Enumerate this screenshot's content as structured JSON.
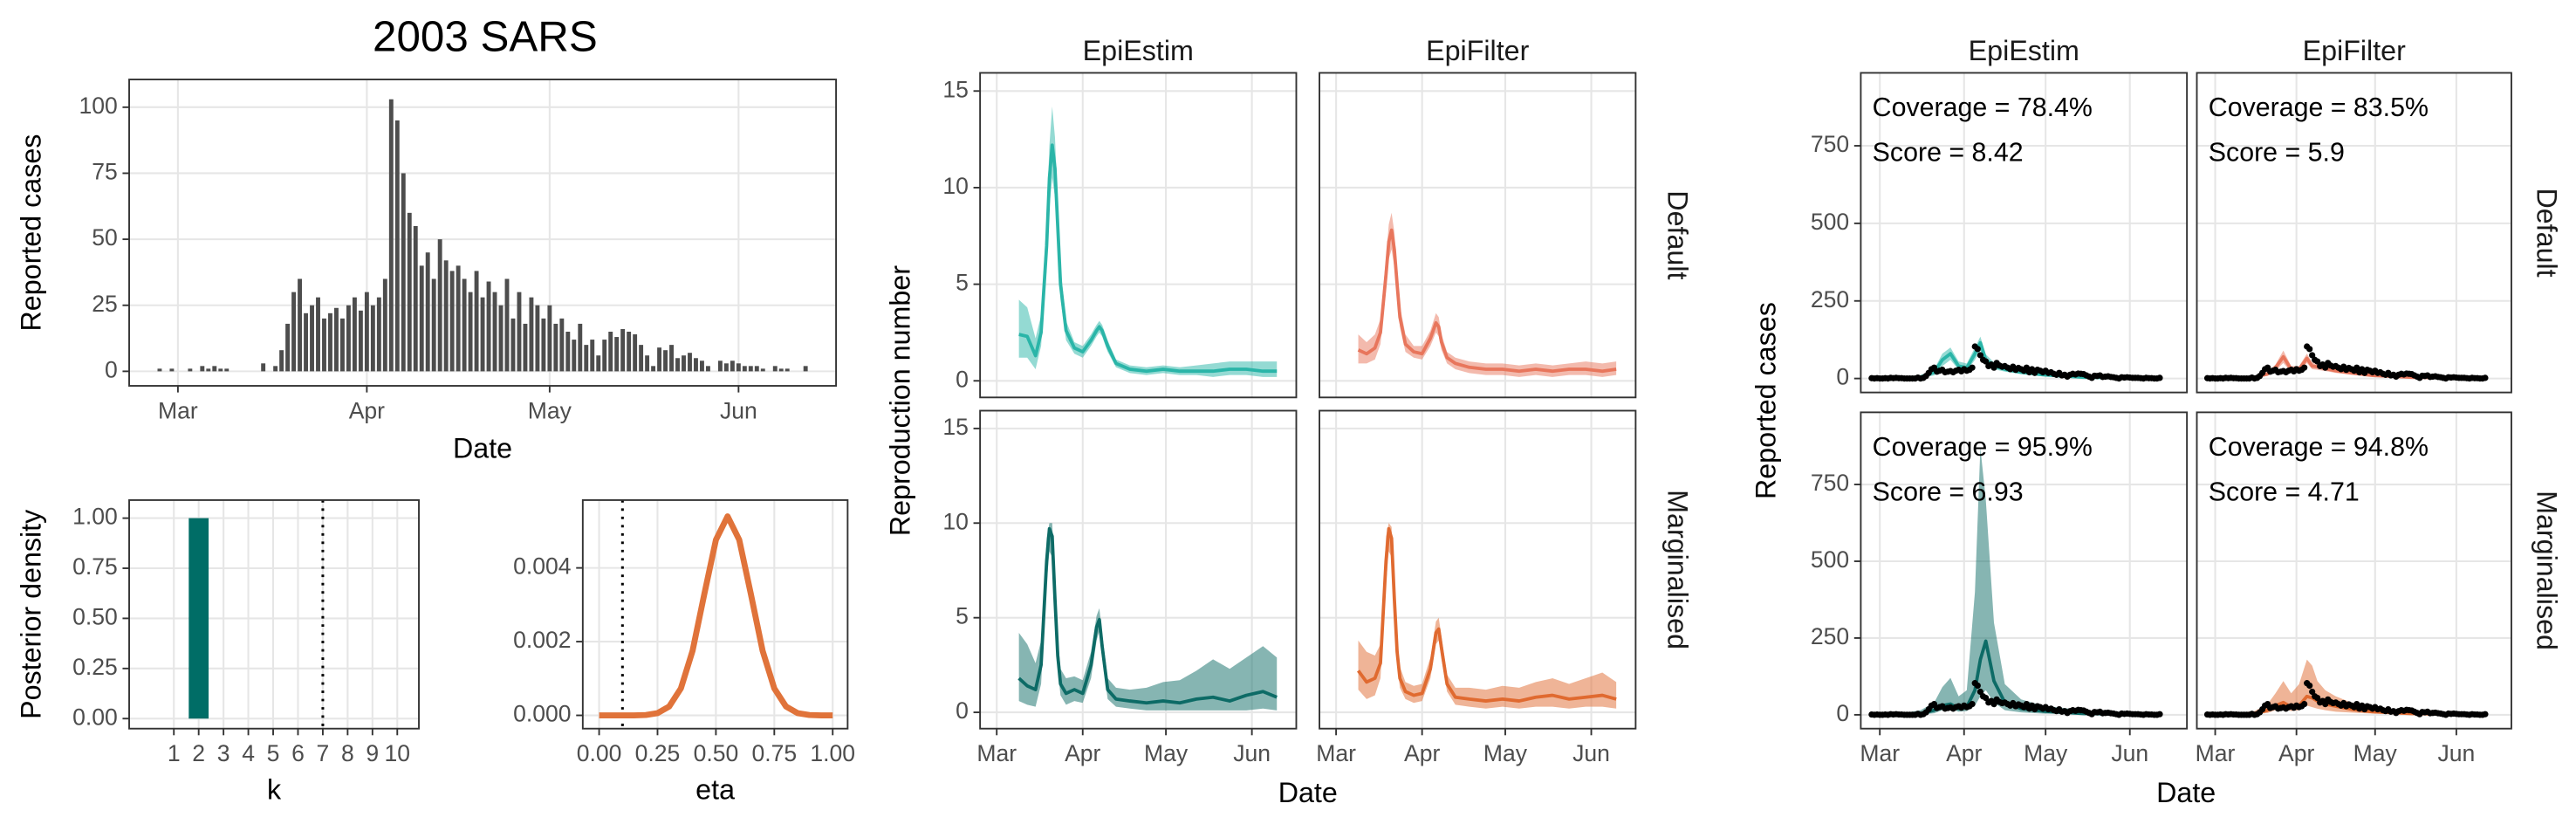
{
  "chart_data": [
    {
      "type": "bar",
      "title": "2003 SARS",
      "xlabel": "Date",
      "ylabel": "Reported cases",
      "x": [
        -3,
        -2,
        -1,
        0,
        1,
        2,
        3,
        4,
        5,
        6,
        7,
        8,
        9,
        10,
        11,
        12,
        13,
        14,
        15,
        16,
        17,
        18,
        19,
        20,
        21,
        22,
        23,
        24,
        25,
        26,
        27,
        28,
        29,
        30,
        31,
        32,
        33,
        34,
        35,
        36,
        37,
        38,
        39,
        40,
        41,
        42,
        43,
        44,
        45,
        46,
        47,
        48,
        49,
        50,
        51,
        52,
        53,
        54,
        55,
        56,
        57,
        58,
        59,
        60,
        61,
        62,
        63,
        64,
        65,
        66,
        67,
        68,
        69,
        70,
        71,
        72,
        73,
        74,
        75,
        76,
        77,
        78,
        79,
        80,
        81,
        82,
        83,
        84,
        85,
        86,
        87,
        88,
        89,
        90,
        91,
        92,
        93,
        94,
        95,
        96,
        97,
        98,
        99,
        100,
        101,
        102,
        103
      ],
      "values": [
        1,
        0,
        1,
        0,
        0,
        1,
        0,
        2,
        1,
        2,
        1,
        1,
        0,
        0,
        0,
        0,
        0,
        3,
        0,
        2,
        8,
        18,
        30,
        35,
        22,
        25,
        28,
        20,
        22,
        24,
        20,
        25,
        28,
        23,
        30,
        25,
        28,
        35,
        103,
        95,
        75,
        60,
        55,
        40,
        45,
        35,
        50,
        42,
        38,
        40,
        35,
        30,
        38,
        28,
        34,
        30,
        25,
        35,
        20,
        30,
        18,
        28,
        25,
        20,
        25,
        18,
        20,
        15,
        12,
        18,
        10,
        12,
        6,
        12,
        15,
        13,
        16,
        15,
        14,
        10,
        6,
        2,
        9,
        8,
        10,
        5,
        6,
        7,
        5,
        4,
        2,
        0,
        4,
        3,
        4,
        3,
        2,
        2,
        2,
        1,
        0,
        2,
        1,
        1,
        0,
        0,
        2
      ],
      "color": "#4d4d4d",
      "grid": true,
      "xlim": [
        -8,
        108
      ],
      "xticks": [
        {
          "value": 0,
          "label": "Mar"
        },
        {
          "value": 31,
          "label": "Apr"
        },
        {
          "value": 61,
          "label": "May"
        },
        {
          "value": 92,
          "label": "Jun"
        }
      ],
      "ylim": [
        -5.5,
        110.5
      ],
      "yticks": [
        0,
        25,
        50,
        75,
        100
      ]
    },
    {
      "type": "bar",
      "xlabel": "k",
      "ylabel": "Posterior density",
      "categories": [
        "1",
        "2",
        "3",
        "4",
        "5",
        "6",
        "7",
        "8",
        "9",
        "10"
      ],
      "values": [
        0,
        1,
        0,
        0,
        0,
        0,
        0,
        0,
        0,
        0
      ],
      "color": "#006d66",
      "grid": true,
      "vline": 7,
      "ylim": [
        -0.05,
        1.09
      ],
      "yticks": [
        {
          "value": 0,
          "label": "0.00"
        },
        {
          "value": 0.25,
          "label": "0.25"
        },
        {
          "value": 0.5,
          "label": "0.50"
        },
        {
          "value": 0.75,
          "label": "0.75"
        },
        {
          "value": 1,
          "label": "1.00"
        }
      ]
    },
    {
      "type": "line",
      "xlabel": "eta",
      "x": [
        0,
        0.05,
        0.1,
        0.15,
        0.2,
        0.25,
        0.3,
        0.35,
        0.4,
        0.45,
        0.5,
        0.55,
        0.6,
        0.65,
        0.7,
        0.75,
        0.8,
        0.85,
        0.9,
        0.95,
        1
      ],
      "values": [
        0,
        0,
        0,
        0,
        1e-05,
        6e-05,
        0.00024,
        0.00073,
        0.00175,
        0.00328,
        0.00476,
        0.0054,
        0.00476,
        0.00328,
        0.00175,
        0.00073,
        0.00024,
        6e-05,
        1e-05,
        0,
        0
      ],
      "color": "#e0733a",
      "grid": true,
      "vline": 0.1,
      "xlim": [
        -0.07,
        1.064
      ],
      "xticks": [
        {
          "value": 0,
          "label": "0.00"
        },
        {
          "value": 0.25,
          "label": "0.25"
        },
        {
          "value": 0.5,
          "label": "0.50"
        },
        {
          "value": 0.75,
          "label": "0.75"
        },
        {
          "value": 1,
          "label": "1.00"
        }
      ],
      "ylim": [
        -0.00036,
        0.00584
      ],
      "yticks": [
        {
          "value": 0,
          "label": "0.000"
        },
        {
          "value": 0.002,
          "label": "0.002"
        },
        {
          "value": 0.004,
          "label": "0.004"
        }
      ]
    },
    {
      "type": "facet_ribbon",
      "xlabel": "Date",
      "ylabel": "Reproduction number",
      "columns": [
        "EpiEstim",
        "EpiFilter"
      ],
      "rows": [
        "Default",
        "Marginalised"
      ],
      "grid": true,
      "x": [
        8,
        11,
        14,
        16,
        18,
        19,
        20,
        21,
        22,
        23,
        25,
        28,
        31,
        34,
        36,
        37,
        38,
        40,
        43,
        48,
        54,
        60,
        66,
        72,
        78,
        84,
        90,
        96,
        101
      ],
      "xlim": [
        -6,
        108
      ],
      "xticks": [
        {
          "value": 0,
          "label": "Mar"
        },
        {
          "value": 31,
          "label": "Apr"
        },
        {
          "value": 61,
          "label": "May"
        },
        {
          "value": 92,
          "label": "Jun"
        }
      ],
      "ylim": [
        -0.86,
        15.94
      ],
      "yticks": [
        0,
        5,
        10,
        15
      ],
      "panels": [
        {
          "color": "#2ab5a8",
          "values": [
            2.4,
            2.3,
            1.3,
            2.5,
            7,
            10.5,
            12.2,
            11,
            8,
            5,
            2.6,
            1.7,
            1.5,
            2.1,
            2.6,
            2.8,
            2.6,
            1.8,
            0.9,
            0.6,
            0.5,
            0.6,
            0.5,
            0.5,
            0.5,
            0.6,
            0.6,
            0.5,
            0.5
          ],
          "lower": [
            1.2,
            1.2,
            0.6,
            1.8,
            5.8,
            9,
            10.5,
            9.5,
            6.8,
            4.2,
            2.1,
            1.4,
            1.2,
            1.8,
            2.3,
            2.5,
            2.3,
            1.5,
            0.7,
            0.4,
            0.3,
            0.4,
            0.3,
            0.3,
            0.2,
            0.3,
            0.3,
            0.2,
            0.2
          ],
          "upper": [
            4.2,
            3.8,
            2.2,
            3.4,
            8.4,
            12.2,
            14.2,
            12.6,
            9.4,
            5.9,
            3.1,
            2,
            1.8,
            2.4,
            2.9,
            3.1,
            2.9,
            2.1,
            1.1,
            0.8,
            0.7,
            0.8,
            0.7,
            0.8,
            0.9,
            1,
            1,
            1,
            1
          ]
        },
        {
          "color": "#e8765c",
          "values": [
            1.6,
            1.4,
            1.7,
            2.5,
            5.5,
            7.2,
            7.8,
            6.8,
            5,
            3.3,
            1.9,
            1.5,
            1.4,
            2.2,
            3,
            2.8,
            2,
            1.2,
            0.9,
            0.7,
            0.6,
            0.6,
            0.5,
            0.6,
            0.5,
            0.6,
            0.6,
            0.5,
            0.6
          ],
          "lower": [
            0.9,
            0.9,
            1.1,
            1.9,
            4.7,
            6.3,
            6.8,
            5.9,
            4.3,
            2.8,
            1.5,
            1.2,
            1.1,
            1.8,
            2.5,
            2.3,
            1.6,
            0.9,
            0.6,
            0.4,
            0.3,
            0.3,
            0.2,
            0.3,
            0.2,
            0.3,
            0.3,
            0.2,
            0.3
          ],
          "upper": [
            2.4,
            2,
            2.4,
            3.2,
            6.4,
            8.1,
            8.7,
            7.7,
            5.8,
            3.9,
            2.4,
            1.8,
            1.8,
            2.6,
            3.5,
            3.3,
            2.4,
            1.5,
            1.2,
            1,
            0.9,
            0.9,
            0.8,
            0.9,
            0.8,
            0.9,
            1,
            0.9,
            1
          ]
        },
        {
          "color": "#0d6b66",
          "values": [
            1.8,
            1.4,
            1.2,
            2.5,
            8,
            9.7,
            9.3,
            6,
            3,
            1.5,
            1,
            1.2,
            1,
            2.5,
            4.5,
            4.9,
            3.5,
            1.2,
            0.7,
            0.6,
            0.5,
            0.6,
            0.5,
            0.7,
            0.8,
            0.6,
            0.9,
            1.1,
            0.8
          ],
          "lower": [
            0.6,
            0.4,
            0.3,
            1.5,
            6.8,
            8.5,
            8.2,
            5,
            2.3,
            0.9,
            0.4,
            0.6,
            0.5,
            1.8,
            3.8,
            4.3,
            2.9,
            0.7,
            0.3,
            0.2,
            0.1,
            0.1,
            0.1,
            0.1,
            0.1,
            0.1,
            0.1,
            0.2,
            0.1
          ],
          "upper": [
            4.2,
            3.6,
            2.6,
            3.8,
            9.2,
            10,
            10,
            7,
            4,
            2.3,
            1.8,
            1.9,
            1.7,
            3.2,
            5.1,
            5.5,
            4.2,
            1.8,
            1.3,
            1.2,
            1.3,
            1.6,
            1.7,
            2.2,
            2.8,
            2.3,
            2.9,
            3.5,
            2.9
          ]
        },
        {
          "color": "#e06a30",
          "values": [
            2.2,
            1.6,
            1.8,
            2.6,
            8,
            9.7,
            9.2,
            6,
            3.2,
            1.8,
            1.1,
            0.9,
            1,
            2.3,
            4.2,
            4.4,
            3.4,
            1.5,
            0.8,
            0.7,
            0.6,
            0.7,
            0.6,
            0.8,
            0.9,
            0.7,
            0.8,
            0.9,
            0.7
          ],
          "lower": [
            1.2,
            0.7,
            0.9,
            1.8,
            6.8,
            8.5,
            8.2,
            5.2,
            2.6,
            1.3,
            0.7,
            0.5,
            0.6,
            1.8,
            3.6,
            3.8,
            2.8,
            1.1,
            0.4,
            0.3,
            0.2,
            0.3,
            0.2,
            0.3,
            0.3,
            0.2,
            0.3,
            0.3,
            0.2
          ],
          "upper": [
            3.8,
            3.2,
            3,
            3.6,
            9.3,
            10,
            9.8,
            6.8,
            3.8,
            2.4,
            1.6,
            1.4,
            1.5,
            2.9,
            4.8,
            5,
            4,
            2,
            1.3,
            1.3,
            1.2,
            1.4,
            1.3,
            1.6,
            1.8,
            1.5,
            1.8,
            2.1,
            1.6
          ]
        }
      ]
    },
    {
      "type": "facet_ribbon",
      "xlabel": "Date",
      "ylabel": "Reported cases",
      "columns": [
        "EpiEstim",
        "EpiFilter"
      ],
      "rows": [
        "Default",
        "Marginalised"
      ],
      "grid": true,
      "observed_color": "#000000",
      "x": [
        0,
        5,
        10,
        15,
        20,
        23,
        26,
        29,
        32,
        35,
        37,
        39,
        42,
        46,
        52,
        60,
        75,
        100
      ],
      "xlim": [
        -7,
        113
      ],
      "xticks": [
        {
          "value": 0,
          "label": "Mar"
        },
        {
          "value": 31,
          "label": "Apr"
        },
        {
          "value": 61,
          "label": "May"
        },
        {
          "value": 92,
          "label": "Jun"
        }
      ],
      "ylim": [
        -45,
        985
      ],
      "yticks": [
        0,
        250,
        500,
        750
      ],
      "panels": [
        {
          "color": "#2ab5a8",
          "annotations": [
            "Coverage = 78.4%",
            "Score = 8.42"
          ],
          "values": [
            0,
            1,
            2,
            5,
            20,
            60,
            80,
            40,
            35,
            80,
            115,
            60,
            40,
            30,
            20,
            12,
            4,
            1
          ],
          "lower": [
            0,
            0,
            0,
            2,
            10,
            40,
            60,
            28,
            25,
            60,
            90,
            45,
            30,
            22,
            14,
            8,
            2,
            0
          ],
          "upper": [
            2,
            3,
            6,
            10,
            30,
            80,
            100,
            55,
            48,
            100,
            135,
            78,
            52,
            40,
            28,
            18,
            8,
            3
          ]
        },
        {
          "color": "#e8765c",
          "annotations": [
            "Coverage = 83.5%",
            "Score = 5.9"
          ],
          "values": [
            0,
            1,
            2,
            4,
            15,
            35,
            70,
            30,
            30,
            65,
            40,
            38,
            32,
            25,
            18,
            10,
            4,
            1
          ],
          "lower": [
            0,
            0,
            1,
            2,
            8,
            25,
            50,
            20,
            22,
            50,
            30,
            28,
            24,
            18,
            12,
            6,
            2,
            0
          ],
          "upper": [
            2,
            3,
            5,
            8,
            22,
            45,
            90,
            40,
            40,
            80,
            52,
            48,
            42,
            32,
            24,
            14,
            8,
            3
          ]
        },
        {
          "color": "#0d6b66",
          "annotations": [
            "Coverage = 95.9%",
            "Score = 6.93"
          ],
          "values": [
            0,
            1,
            2,
            4,
            15,
            30,
            35,
            20,
            25,
            80,
            180,
            240,
            110,
            40,
            20,
            12,
            4,
            1
          ],
          "lower": [
            0,
            0,
            0,
            1,
            5,
            15,
            20,
            10,
            12,
            30,
            60,
            80,
            40,
            15,
            8,
            4,
            1,
            0
          ],
          "upper": [
            3,
            5,
            8,
            15,
            40,
            90,
            120,
            60,
            80,
            400,
            870,
            700,
            300,
            100,
            50,
            30,
            15,
            5
          ]
        },
        {
          "color": "#e06a30",
          "annotations": [
            "Coverage = 94.8%",
            "Score = 4.71"
          ],
          "values": [
            0,
            1,
            2,
            4,
            15,
            30,
            40,
            25,
            30,
            60,
            55,
            45,
            35,
            28,
            18,
            10,
            4,
            1
          ],
          "lower": [
            0,
            0,
            0,
            2,
            6,
            15,
            20,
            12,
            15,
            30,
            25,
            20,
            15,
            10,
            7,
            4,
            1,
            0
          ],
          "upper": [
            3,
            5,
            8,
            12,
            35,
            70,
            110,
            70,
            100,
            180,
            160,
            110,
            80,
            60,
            40,
            25,
            10,
            4
          ]
        }
      ]
    }
  ]
}
